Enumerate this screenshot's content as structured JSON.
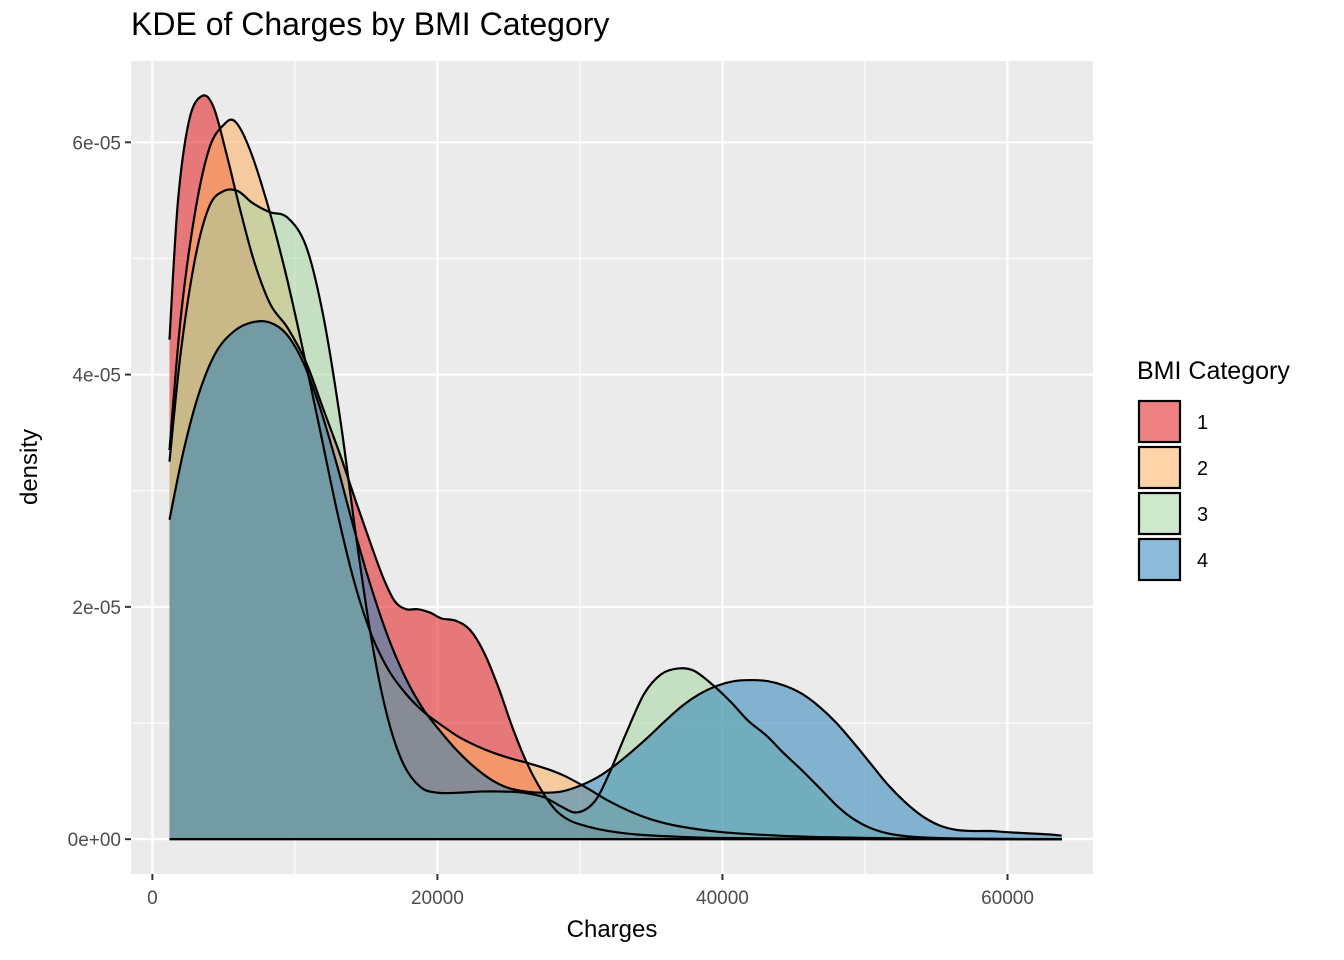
{
  "chart_data": {
    "type": "area",
    "title": "KDE of Charges by BMI Category",
    "xlabel": "Charges",
    "ylabel": "density",
    "xlim": [
      -1500,
      66000
    ],
    "ylim": [
      -3e-06,
      6.7e-05
    ],
    "x_ticks": [
      0,
      20000,
      40000,
      60000
    ],
    "x_tick_labels": [
      "0",
      "20000",
      "40000",
      "60000"
    ],
    "y_ticks": [
      0,
      2e-05,
      4e-05,
      6e-05
    ],
    "y_tick_labels": [
      "0e+00",
      "2e-05",
      "4e-05",
      "6e-05"
    ],
    "grid": true,
    "legend": {
      "title": "BMI Category",
      "position": "right"
    },
    "series": [
      {
        "name": "1",
        "color": "#e41a1c",
        "points": [
          [
            1200,
            4.3e-05
          ],
          [
            1800,
            5.5e-05
          ],
          [
            2600,
            6.2e-05
          ],
          [
            3500,
            6.4e-05
          ],
          [
            4300,
            6.3e-05
          ],
          [
            5200,
            5.9e-05
          ],
          [
            6200,
            5.4e-05
          ],
          [
            7200,
            4.95e-05
          ],
          [
            8300,
            4.6e-05
          ],
          [
            9500,
            4.4e-05
          ],
          [
            10800,
            4.1e-05
          ],
          [
            12000,
            3.7e-05
          ],
          [
            13200,
            3.3e-05
          ],
          [
            14300,
            2.9e-05
          ],
          [
            15300,
            2.55e-05
          ],
          [
            16200,
            2.25e-05
          ],
          [
            17000,
            2.05e-05
          ],
          [
            17800,
            1.98e-05
          ],
          [
            18600,
            1.98e-05
          ],
          [
            19500,
            1.95e-05
          ],
          [
            20300,
            1.9e-05
          ],
          [
            21300,
            1.88e-05
          ],
          [
            22300,
            1.8e-05
          ],
          [
            23300,
            1.6e-05
          ],
          [
            24300,
            1.3e-05
          ],
          [
            25300,
            9.5e-06
          ],
          [
            26300,
            6.5e-06
          ],
          [
            27300,
            4.2e-06
          ],
          [
            28300,
            2.5e-06
          ],
          [
            29300,
            1.6e-06
          ],
          [
            30500,
            1.1e-06
          ],
          [
            32000,
            7e-07
          ],
          [
            34000,
            4e-07
          ],
          [
            37000,
            2e-07
          ],
          [
            40000,
            1e-07
          ],
          [
            45000,
            5e-08
          ],
          [
            50000,
            2e-08
          ],
          [
            55000,
            1e-08
          ],
          [
            60000,
            0
          ],
          [
            63800,
            0
          ]
        ]
      },
      {
        "name": "2",
        "color": "#fdae61",
        "points": [
          [
            1200,
            3.35e-05
          ],
          [
            2000,
            4.5e-05
          ],
          [
            3000,
            5.4e-05
          ],
          [
            4000,
            5.95e-05
          ],
          [
            5000,
            6.15e-05
          ],
          [
            5800,
            6.18e-05
          ],
          [
            6800,
            5.95e-05
          ],
          [
            8000,
            5.5e-05
          ],
          [
            9300,
            4.9e-05
          ],
          [
            10500,
            4.25e-05
          ],
          [
            11800,
            3.5e-05
          ],
          [
            13000,
            2.8e-05
          ],
          [
            14200,
            2.2e-05
          ],
          [
            15400,
            1.75e-05
          ],
          [
            16600,
            1.45e-05
          ],
          [
            17800,
            1.25e-05
          ],
          [
            19000,
            1.1e-05
          ],
          [
            20300,
            9.8e-06
          ],
          [
            21500,
            8.8e-06
          ],
          [
            22800,
            8e-06
          ],
          [
            24000,
            7.4e-06
          ],
          [
            25300,
            6.9e-06
          ],
          [
            26500,
            6.5e-06
          ],
          [
            27800,
            6e-06
          ],
          [
            29000,
            5.4e-06
          ],
          [
            30500,
            4.4e-06
          ],
          [
            32000,
            3.3e-06
          ],
          [
            33500,
            2.4e-06
          ],
          [
            35000,
            1.7e-06
          ],
          [
            37000,
            1.1e-06
          ],
          [
            40000,
            6e-07
          ],
          [
            44000,
            3e-07
          ],
          [
            48000,
            1.5e-07
          ],
          [
            53000,
            5e-08
          ],
          [
            58000,
            2e-08
          ],
          [
            63800,
            0
          ]
        ]
      },
      {
        "name": "3",
        "color": "#a6d5a0",
        "points": [
          [
            1200,
            3.25e-05
          ],
          [
            2000,
            4.2e-05
          ],
          [
            3000,
            5e-05
          ],
          [
            4000,
            5.45e-05
          ],
          [
            5000,
            5.58e-05
          ],
          [
            6000,
            5.58e-05
          ],
          [
            7000,
            5.48e-05
          ],
          [
            8200,
            5.4e-05
          ],
          [
            9500,
            5.35e-05
          ],
          [
            10800,
            5.1e-05
          ],
          [
            12000,
            4.5e-05
          ],
          [
            13200,
            3.6e-05
          ],
          [
            14300,
            2.6e-05
          ],
          [
            15400,
            1.7e-05
          ],
          [
            16500,
            1.05e-05
          ],
          [
            17600,
            6.5e-06
          ],
          [
            18800,
            4.5e-06
          ],
          [
            20000,
            4e-06
          ],
          [
            21500,
            4e-06
          ],
          [
            23000,
            4.1e-06
          ],
          [
            24500,
            4.1e-06
          ],
          [
            26000,
            4e-06
          ],
          [
            27500,
            3.6e-06
          ],
          [
            28700,
            2.8e-06
          ],
          [
            29800,
            2.3e-06
          ],
          [
            31000,
            3.2e-06
          ],
          [
            32000,
            5.5e-06
          ],
          [
            33200,
            9e-06
          ],
          [
            34500,
            1.25e-05
          ],
          [
            35700,
            1.42e-05
          ],
          [
            36900,
            1.47e-05
          ],
          [
            38000,
            1.45e-05
          ],
          [
            39300,
            1.33e-05
          ],
          [
            40600,
            1.18e-05
          ],
          [
            41800,
            1.02e-05
          ],
          [
            43100,
            8.9e-06
          ],
          [
            44300,
            7.4e-06
          ],
          [
            45600,
            5.9e-06
          ],
          [
            46900,
            4.3e-06
          ],
          [
            48100,
            2.8e-06
          ],
          [
            49300,
            1.65e-06
          ],
          [
            50600,
            8.5e-07
          ],
          [
            52000,
            4e-07
          ],
          [
            54000,
            1.5e-07
          ],
          [
            57000,
            5e-08
          ],
          [
            63800,
            0
          ]
        ]
      },
      {
        "name": "4",
        "color": "#2b83ba",
        "points": [
          [
            1200,
            2.75e-05
          ],
          [
            2200,
            3.35e-05
          ],
          [
            3300,
            3.85e-05
          ],
          [
            4500,
            4.2e-05
          ],
          [
            5800,
            4.38e-05
          ],
          [
            7000,
            4.45e-05
          ],
          [
            8200,
            4.45e-05
          ],
          [
            9400,
            4.35e-05
          ],
          [
            10600,
            4.1e-05
          ],
          [
            11800,
            3.7e-05
          ],
          [
            13000,
            3.2e-05
          ],
          [
            14200,
            2.65e-05
          ],
          [
            15400,
            2.15e-05
          ],
          [
            16600,
            1.72e-05
          ],
          [
            17800,
            1.38e-05
          ],
          [
            19000,
            1.12e-05
          ],
          [
            20200,
            9.3e-06
          ],
          [
            21400,
            7.6e-06
          ],
          [
            22600,
            6.2e-06
          ],
          [
            23800,
            5.1e-06
          ],
          [
            25000,
            4.4e-06
          ],
          [
            26200,
            4.1e-06
          ],
          [
            27400,
            4e-06
          ],
          [
            28700,
            4.1e-06
          ],
          [
            30000,
            4.6e-06
          ],
          [
            31200,
            5.3e-06
          ],
          [
            32400,
            6.3e-06
          ],
          [
            33600,
            7.5e-06
          ],
          [
            34800,
            8.8e-06
          ],
          [
            36000,
            1.02e-05
          ],
          [
            37200,
            1.15e-05
          ],
          [
            38400,
            1.25e-05
          ],
          [
            39600,
            1.32e-05
          ],
          [
            40800,
            1.36e-05
          ],
          [
            42000,
            1.37e-05
          ],
          [
            43200,
            1.36e-05
          ],
          [
            44400,
            1.32e-05
          ],
          [
            45600,
            1.25e-05
          ],
          [
            46800,
            1.14e-05
          ],
          [
            48000,
            1e-05
          ],
          [
            49200,
            8.3e-06
          ],
          [
            50400,
            6.5e-06
          ],
          [
            51600,
            4.7e-06
          ],
          [
            52800,
            3.2e-06
          ],
          [
            54000,
            2e-06
          ],
          [
            55200,
            1.2e-06
          ],
          [
            56400,
            8e-07
          ],
          [
            57600,
            7e-07
          ],
          [
            58800,
            7e-07
          ],
          [
            60000,
            6e-07
          ],
          [
            61500,
            5e-07
          ],
          [
            63000,
            4e-07
          ],
          [
            63800,
            3e-07
          ]
        ]
      }
    ]
  }
}
